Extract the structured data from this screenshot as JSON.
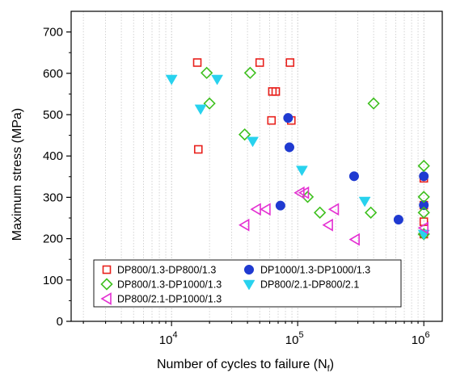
{
  "chart_data": {
    "type": "scatter",
    "xlabel": "Number of cycles to failure (N",
    "xlabel_sub": "f",
    "xlabel_end": ")",
    "ylabel": "Maximum stress (MPa)",
    "xscale": "log",
    "xlim": [
      1600,
      1400000
    ],
    "ylim": [
      0,
      750
    ],
    "yticks": [
      0,
      100,
      200,
      300,
      400,
      500,
      600,
      700
    ],
    "xticks": [
      {
        "value": 10000,
        "base": "10",
        "exp": "4"
      },
      {
        "value": 100000,
        "base": "10",
        "exp": "5"
      },
      {
        "value": 1000000,
        "base": "10",
        "exp": "6"
      }
    ],
    "grid": "x-minor-dotted",
    "legend_position": "bottom-left",
    "series": [
      {
        "name": "DP800/1.3-DP800/1.3",
        "marker": "square-open",
        "color": "#e8201c",
        "points": [
          [
            16000,
            626
          ],
          [
            16300,
            416
          ],
          [
            50000,
            626
          ],
          [
            63000,
            556
          ],
          [
            67000,
            556
          ],
          [
            62000,
            486
          ],
          [
            87000,
            626
          ],
          [
            89000,
            486
          ],
          [
            1000000,
            346
          ],
          [
            1000000,
            281
          ],
          [
            1000000,
            241
          ],
          [
            1000000,
            211
          ]
        ]
      },
      {
        "name": "DP1000/1.3-DP1000/1.3",
        "marker": "circle-filled",
        "color": "#1f3ad1",
        "points": [
          [
            84000,
            492
          ],
          [
            86000,
            421
          ],
          [
            73000,
            280
          ],
          [
            280000,
            351
          ],
          [
            630000,
            246
          ],
          [
            1000000,
            351
          ],
          [
            1000000,
            281
          ]
        ]
      },
      {
        "name": "DP800/1.3-DP1000/1.3",
        "marker": "diamond-open",
        "color": "#3ec01e",
        "points": [
          [
            19000,
            601
          ],
          [
            20000,
            527
          ],
          [
            42000,
            601
          ],
          [
            38000,
            452
          ],
          [
            400000,
            527
          ],
          [
            120000,
            301
          ],
          [
            150000,
            263
          ],
          [
            380000,
            263
          ],
          [
            1000000,
            376
          ],
          [
            1000000,
            301
          ],
          [
            1000000,
            263
          ],
          [
            1000000,
            211
          ]
        ]
      },
      {
        "name": "DP800/2.1-DP800/2.1",
        "marker": "triangle-down-filled",
        "color": "#28d2ee",
        "points": [
          [
            10000,
            586
          ],
          [
            17000,
            514
          ],
          [
            23000,
            586
          ],
          [
            44000,
            436
          ],
          [
            108000,
            366
          ],
          [
            340000,
            291
          ],
          [
            1000000,
            211
          ]
        ]
      },
      {
        "name": "DP800/2.1-DP1000/1.3",
        "marker": "triangle-left-open",
        "color": "#e430d2",
        "points": [
          [
            38000,
            233
          ],
          [
            47000,
            271
          ],
          [
            56000,
            271
          ],
          [
            104000,
            311
          ],
          [
            113000,
            311
          ],
          [
            175000,
            233
          ],
          [
            195000,
            271
          ],
          [
            285000,
            198
          ],
          [
            1000000,
            226
          ]
        ]
      }
    ]
  }
}
